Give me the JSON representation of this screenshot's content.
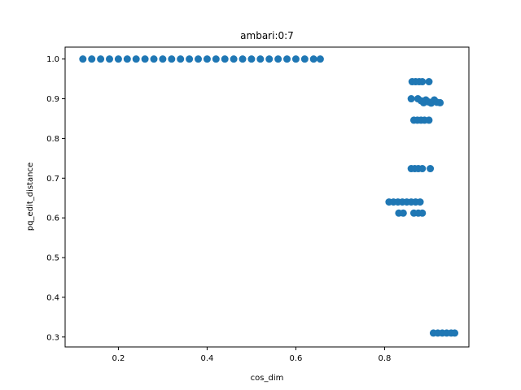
{
  "chart_data": {
    "type": "scatter",
    "title": "ambari:0:7",
    "xlabel": "cos_dim",
    "ylabel": "pq_edit_distance",
    "xlim": [
      0.08,
      0.99
    ],
    "ylim": [
      0.275,
      1.03
    ],
    "xticks": [
      0.2,
      0.4,
      0.6,
      0.8
    ],
    "xtick_labels": [
      "0.2",
      "0.4",
      "0.6",
      "0.8"
    ],
    "yticks": [
      0.3,
      0.4,
      0.5,
      0.6,
      0.7,
      0.8,
      0.9,
      1.0
    ],
    "ytick_labels": [
      "0.3",
      "0.4",
      "0.5",
      "0.6",
      "0.7",
      "0.8",
      "0.9",
      "1.0"
    ],
    "grid": false,
    "marker_color": "#1f77b4",
    "points": [
      {
        "x": 0.12,
        "y": 1.0
      },
      {
        "x": 0.14,
        "y": 1.0
      },
      {
        "x": 0.16,
        "y": 1.0
      },
      {
        "x": 0.18,
        "y": 1.0
      },
      {
        "x": 0.2,
        "y": 1.0
      },
      {
        "x": 0.22,
        "y": 1.0
      },
      {
        "x": 0.24,
        "y": 1.0
      },
      {
        "x": 0.26,
        "y": 1.0
      },
      {
        "x": 0.28,
        "y": 1.0
      },
      {
        "x": 0.3,
        "y": 1.0
      },
      {
        "x": 0.32,
        "y": 1.0
      },
      {
        "x": 0.34,
        "y": 1.0
      },
      {
        "x": 0.36,
        "y": 1.0
      },
      {
        "x": 0.38,
        "y": 1.0
      },
      {
        "x": 0.4,
        "y": 1.0
      },
      {
        "x": 0.42,
        "y": 1.0
      },
      {
        "x": 0.44,
        "y": 1.0
      },
      {
        "x": 0.46,
        "y": 1.0
      },
      {
        "x": 0.48,
        "y": 1.0
      },
      {
        "x": 0.5,
        "y": 1.0
      },
      {
        "x": 0.52,
        "y": 1.0
      },
      {
        "x": 0.54,
        "y": 1.0
      },
      {
        "x": 0.56,
        "y": 1.0
      },
      {
        "x": 0.58,
        "y": 1.0
      },
      {
        "x": 0.6,
        "y": 1.0
      },
      {
        "x": 0.62,
        "y": 1.0
      },
      {
        "x": 0.64,
        "y": 1.0
      },
      {
        "x": 0.655,
        "y": 1.0
      },
      {
        "x": 0.862,
        "y": 0.943
      },
      {
        "x": 0.87,
        "y": 0.943
      },
      {
        "x": 0.878,
        "y": 0.943
      },
      {
        "x": 0.885,
        "y": 0.943
      },
      {
        "x": 0.9,
        "y": 0.943
      },
      {
        "x": 0.86,
        "y": 0.9
      },
      {
        "x": 0.875,
        "y": 0.9
      },
      {
        "x": 0.882,
        "y": 0.895
      },
      {
        "x": 0.888,
        "y": 0.89
      },
      {
        "x": 0.893,
        "y": 0.897
      },
      {
        "x": 0.899,
        "y": 0.892
      },
      {
        "x": 0.905,
        "y": 0.889
      },
      {
        "x": 0.912,
        "y": 0.897
      },
      {
        "x": 0.918,
        "y": 0.891
      },
      {
        "x": 0.925,
        "y": 0.89
      },
      {
        "x": 0.866,
        "y": 0.846
      },
      {
        "x": 0.874,
        "y": 0.846
      },
      {
        "x": 0.882,
        "y": 0.846
      },
      {
        "x": 0.89,
        "y": 0.846
      },
      {
        "x": 0.9,
        "y": 0.846
      },
      {
        "x": 0.86,
        "y": 0.724
      },
      {
        "x": 0.868,
        "y": 0.724
      },
      {
        "x": 0.876,
        "y": 0.724
      },
      {
        "x": 0.885,
        "y": 0.724
      },
      {
        "x": 0.903,
        "y": 0.724
      },
      {
        "x": 0.81,
        "y": 0.64
      },
      {
        "x": 0.82,
        "y": 0.64
      },
      {
        "x": 0.83,
        "y": 0.64
      },
      {
        "x": 0.84,
        "y": 0.64
      },
      {
        "x": 0.85,
        "y": 0.64
      },
      {
        "x": 0.86,
        "y": 0.64
      },
      {
        "x": 0.87,
        "y": 0.64
      },
      {
        "x": 0.88,
        "y": 0.64
      },
      {
        "x": 0.832,
        "y": 0.612
      },
      {
        "x": 0.842,
        "y": 0.612
      },
      {
        "x": 0.866,
        "y": 0.612
      },
      {
        "x": 0.876,
        "y": 0.612
      },
      {
        "x": 0.885,
        "y": 0.612
      },
      {
        "x": 0.91,
        "y": 0.31
      },
      {
        "x": 0.92,
        "y": 0.31
      },
      {
        "x": 0.93,
        "y": 0.31
      },
      {
        "x": 0.94,
        "y": 0.31
      },
      {
        "x": 0.95,
        "y": 0.31
      },
      {
        "x": 0.958,
        "y": 0.31
      }
    ]
  }
}
